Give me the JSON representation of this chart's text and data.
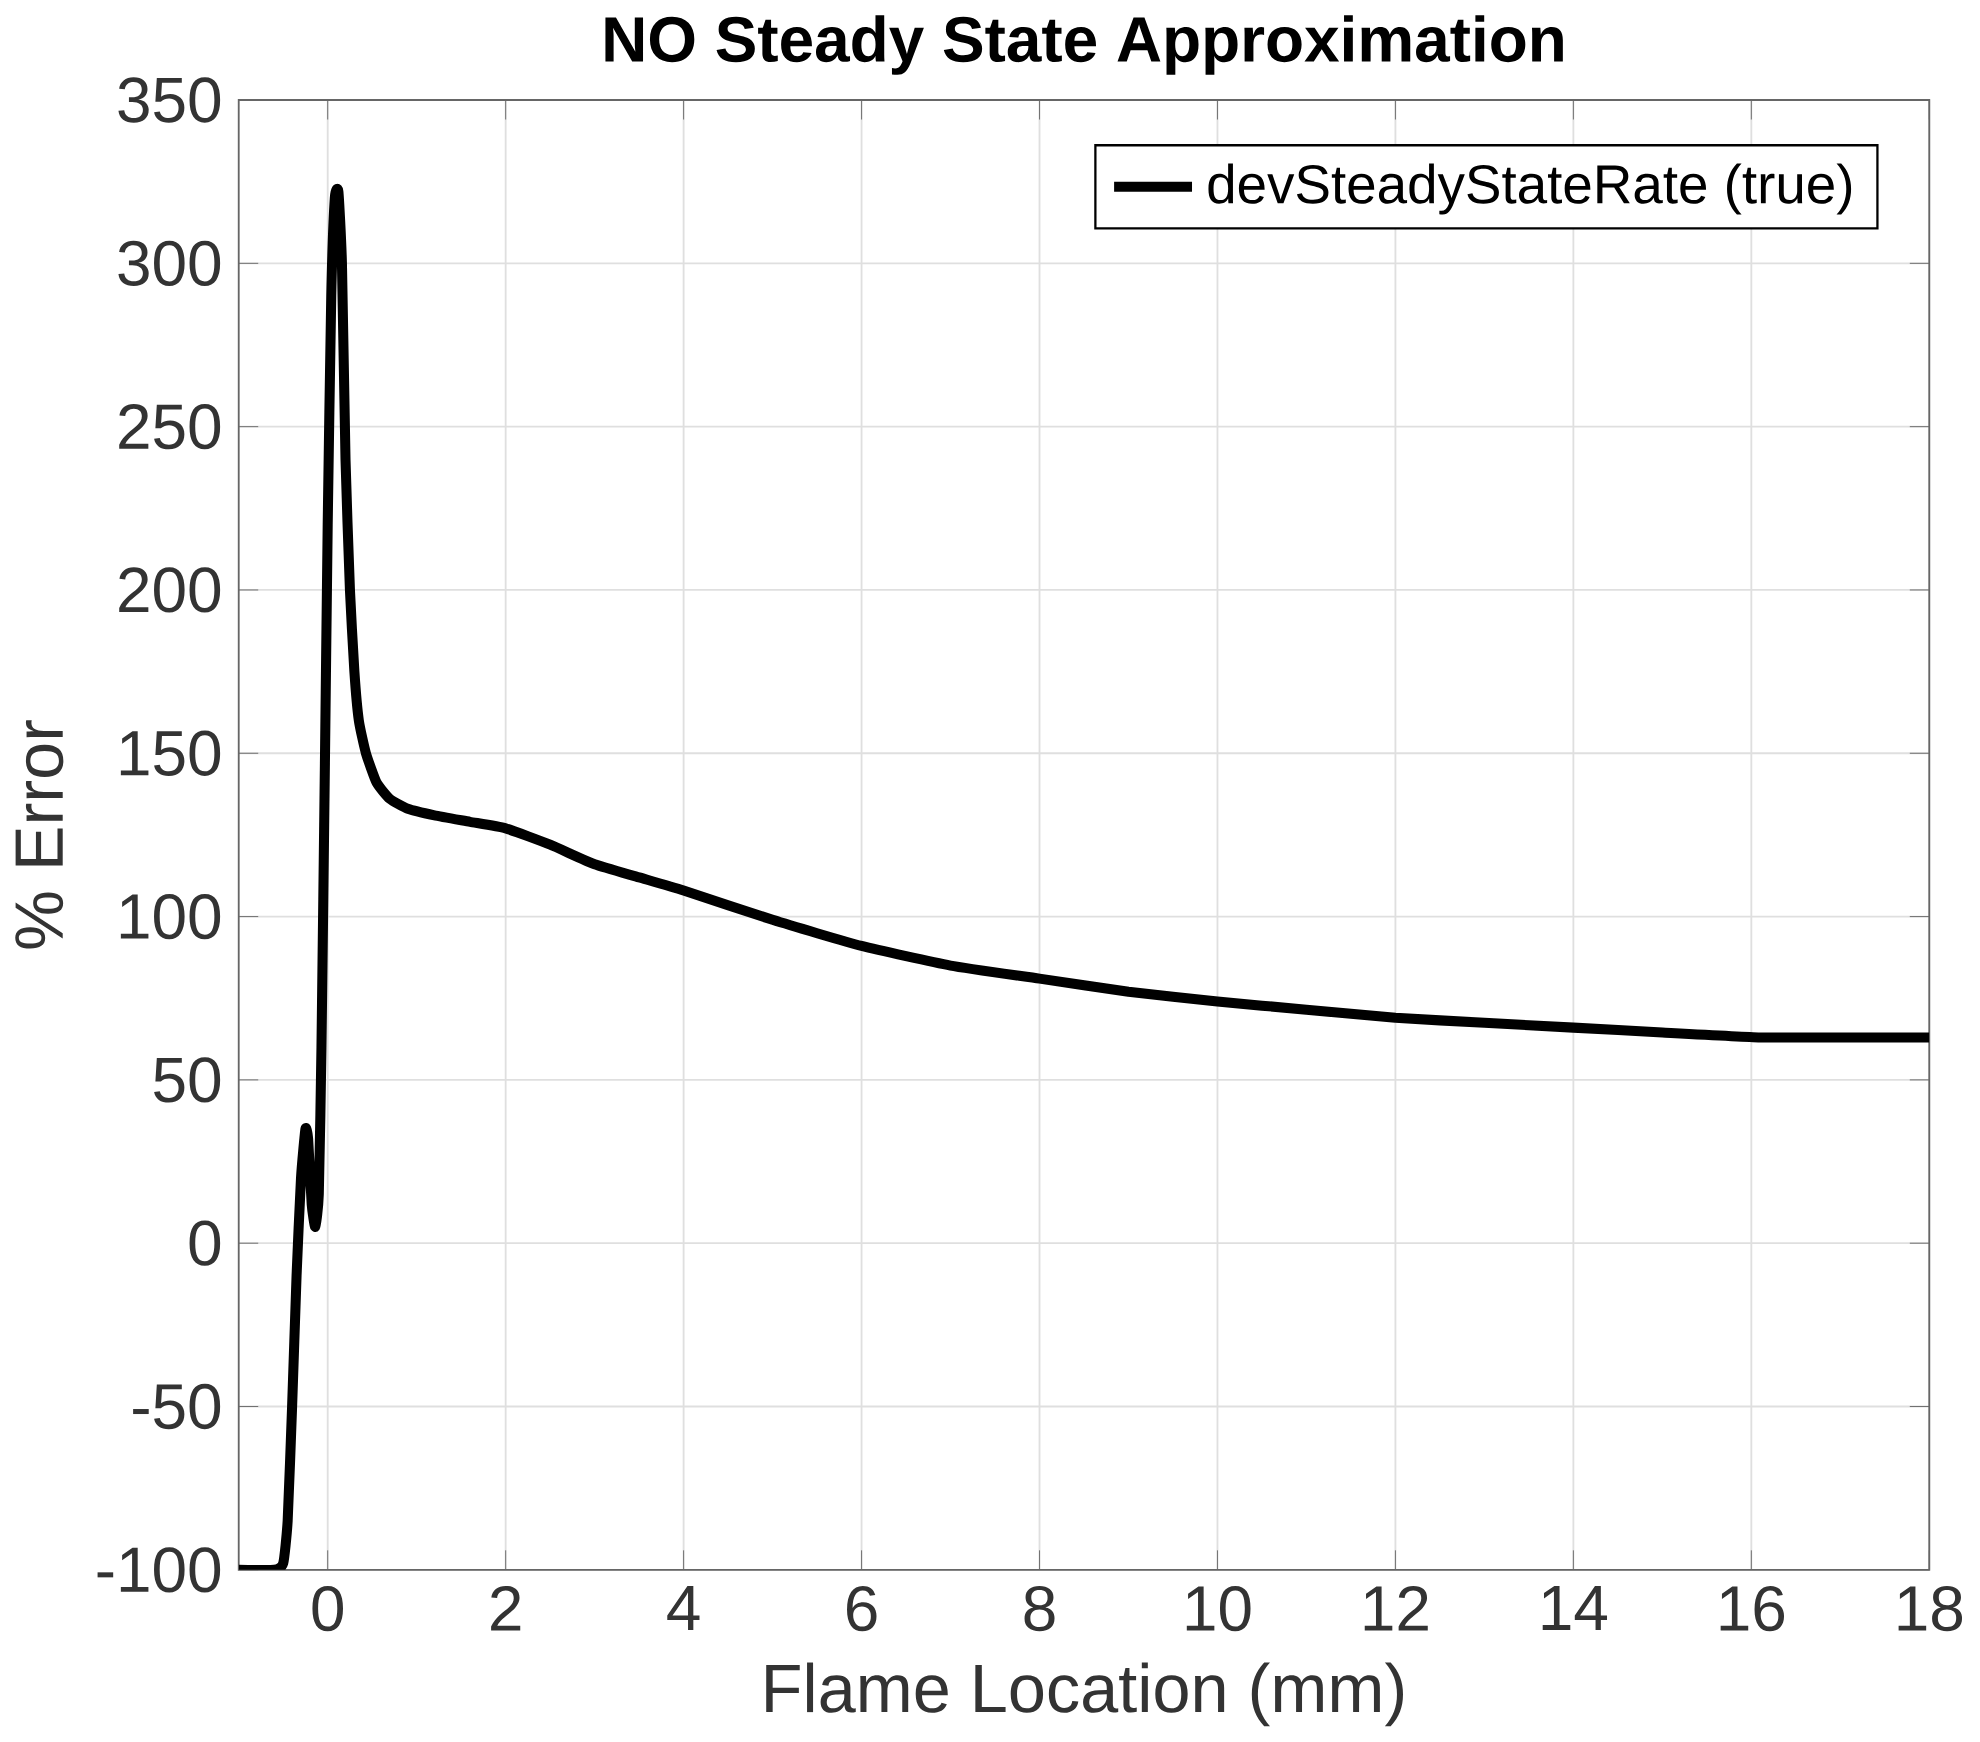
{
  "chart_data": {
    "type": "line",
    "title": "NO Steady State Approximation",
    "xlabel": "Flame Location (mm)",
    "ylabel": "% Error",
    "xlim": [
      -1,
      18
    ],
    "ylim": [
      -100,
      350
    ],
    "xticks": [
      0,
      2,
      4,
      6,
      8,
      10,
      12,
      14,
      16,
      18
    ],
    "yticks": [
      -100,
      -50,
      0,
      50,
      100,
      150,
      200,
      250,
      300,
      350
    ],
    "grid": true,
    "legend": "top right",
    "line_style": "solid",
    "marker": "none",
    "series": [
      {
        "name": "devSteadyStateRate (true)",
        "color": "#000000",
        "x": [
          -1,
          -0.6,
          -0.5,
          -0.45,
          -0.4,
          -0.35,
          -0.3,
          -0.25,
          -0.22,
          -0.18,
          -0.14,
          -0.1,
          -0.07,
          -0.03,
          0,
          0.04,
          0.08,
          0.12,
          0.16,
          0.2,
          0.25,
          0.3,
          0.35,
          0.43,
          0.55,
          0.7,
          0.9,
          1.2,
          1.6,
          2,
          2.5,
          3,
          3.5,
          4,
          5,
          6,
          7,
          8,
          9,
          10,
          11,
          12,
          13,
          14,
          15,
          16.1,
          17,
          18
        ],
        "values": [
          -100,
          -100,
          -98,
          -85,
          -50,
          -10,
          20,
          35,
          32,
          12,
          5,
          15,
          60,
          150,
          220,
          290,
          320,
          322,
          300,
          240,
          200,
          175,
          160,
          150,
          141,
          136,
          133,
          131,
          129,
          127,
          122,
          116,
          112,
          108,
          99,
          91,
          85,
          81,
          77,
          74,
          71.5,
          69,
          67.5,
          66,
          64.5,
          63,
          63,
          63
        ]
      }
    ]
  }
}
